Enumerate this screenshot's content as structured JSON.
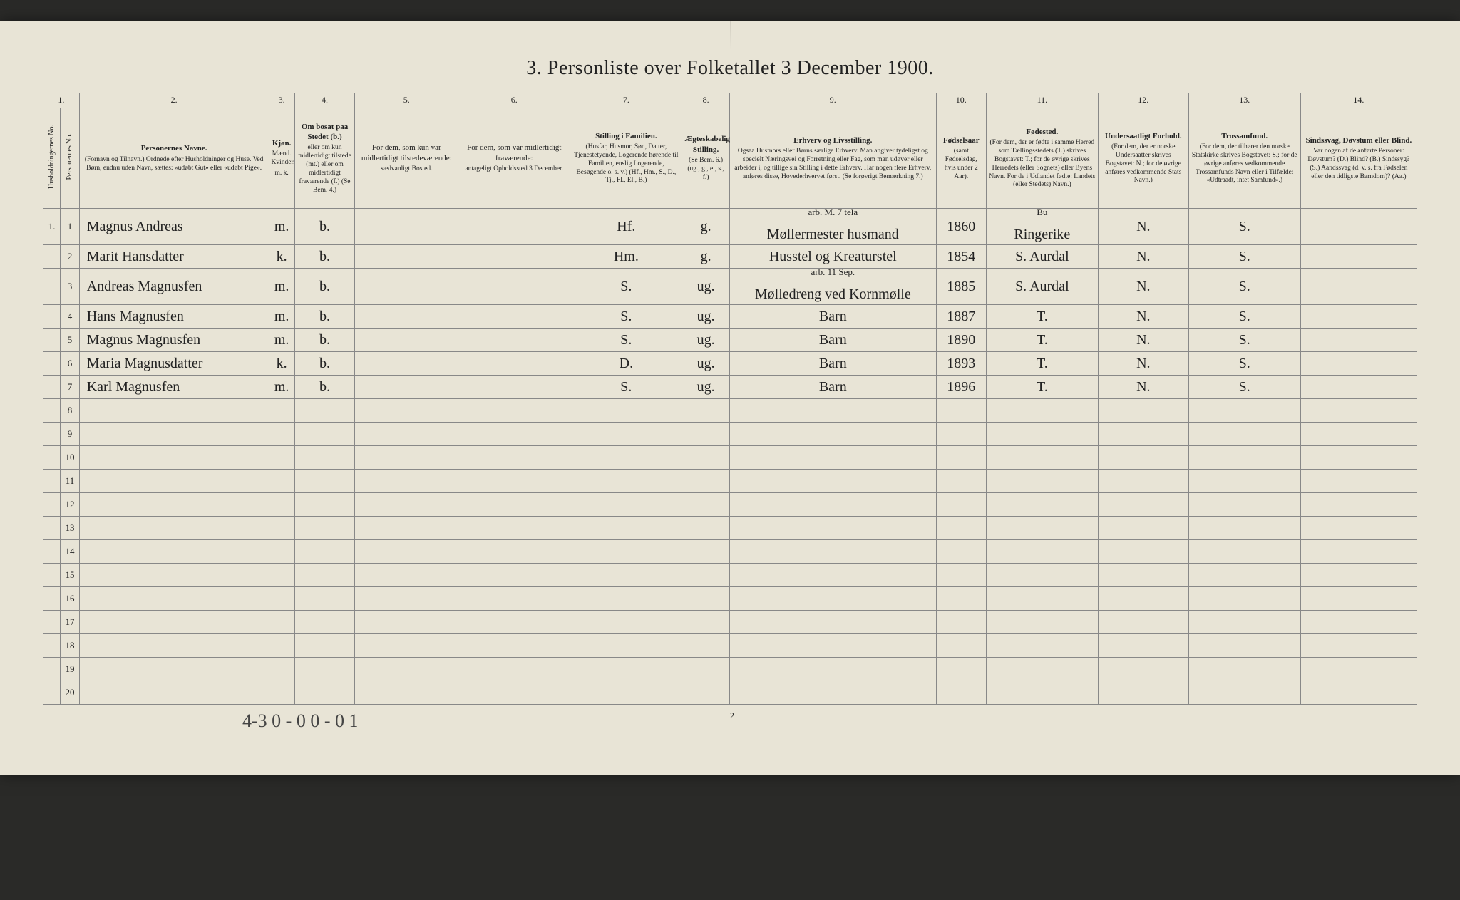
{
  "title": "3. Personliste over Folketallet 3 December 1900.",
  "footer": {
    "handwritten": "4-3  0 - 0    0 - 0    1",
    "page_number": "2"
  },
  "col_numbers": [
    "1.",
    "2.",
    "3.",
    "4.",
    "5.",
    "6.",
    "7.",
    "8.",
    "9.",
    "10.",
    "11.",
    "12.",
    "13.",
    "14."
  ],
  "headers": {
    "h1a": "Husholdningernes No.",
    "h1b": "Personernes No.",
    "c2_title": "Personernes Navne.",
    "c2_sub": "(Fornavn og Tilnavn.)\nOrdnede efter Husholdninger og Huse.\nVed Børn, endnu uden Navn, sættes: «udøbt Gut» eller «udøbt Pige».",
    "c3_title": "Kjøn.",
    "c3_sub": "Mænd. Kvinder.",
    "c3_foot": "m. k.",
    "c4_title": "Om bosat paa Stedet (b.)",
    "c4_sub": "eller om kun midlertidigt tilstede (mt.) eller om midlertidigt fraværende (f.)\n(Se Bem. 4.)",
    "c5_title": "For dem, som kun var midlertidigt tilstedeværende:",
    "c5_sub": "sædvanligt Bosted.",
    "c6_title": "For dem, som var midlertidigt fraværende:",
    "c6_sub": "antageligt Opholdssted 3 December.",
    "c7_title": "Stilling i Familien.",
    "c7_sub": "(Husfar, Husmor, Søn, Datter, Tjenestetyende, Logerende hørende til Familien, enslig Logerende, Besøgende o. s. v.)\n(Hf., Hm., S., D., Tj., Fl., El., B.)",
    "c8_title": "Ægteskabelig Stilling.",
    "c8_sub": "(Se Bem. 6.)\n(ug., g., e., s., f.)",
    "c9_title": "Erhverv og Livsstilling.",
    "c9_sub": "Ogsaa Husmors eller Børns særlige Erhverv. Man angiver tydeligst og specielt Næringsvei og Forretning eller Fag, som man udøver eller arbeider i, og tillige sin Stilling i dette Erhverv. Har nogen flere Erhverv, anføres disse, Hovederhvervet først.\n(Se forøvrigt Bemærkning 7.)",
    "c10_title": "Fødselsaar",
    "c10_sub": "(samt Fødselsdag, hvis under 2 Aar).",
    "c11_title": "Fødested.",
    "c11_sub": "(For dem, der er fødte i samme Herred som Tællingsstedets (T.) skrives Bogstavet: T.; for de øvrige skrives Herredets (eller Sognets) eller Byens Navn. For de i Udlandet fødte: Landets (eller Stedets) Navn.)",
    "c12_title": "Undersaatligt Forhold.",
    "c12_sub": "(For dem, der er norske Undersaatter skrives Bogstavet: N.; for de øvrige anføres vedkommende Stats Navn.)",
    "c13_title": "Trossamfund.",
    "c13_sub": "(For dem, der tilhører den norske Statskirke skrives Bogstavet: S.; for de øvrige anføres vedkommende Trossamfunds Navn eller i Tilfælde: «Udtraadt, intet Samfund».)",
    "c14_title": "Sindssvag, Døvstum eller Blind.",
    "c14_sub": "Var nogen af de anførte Personer:\nDøvstum? (D.)\nBlind? (B.)\nSindssyg? (S.)\nAandssvag (d. v. s. fra Fødselen eller den tidligste Barndom)? (Aa.)"
  },
  "rows": [
    {
      "h": "1.",
      "n": "1",
      "name": "Magnus Andreas",
      "sex": "m.",
      "stat": "b.",
      "fam": "Hf.",
      "civ": "g.",
      "occ": "Møllermester husmand",
      "occ_note": "arb. M. 7 tela",
      "year": "1860",
      "birthplace": "Ringerike",
      "birthplace_note": "Bu",
      "nat": "N.",
      "rel": "S."
    },
    {
      "h": "",
      "n": "2",
      "name": "Marit Hansdatter",
      "sex": "k.",
      "stat": "b.",
      "fam": "Hm.",
      "civ": "g.",
      "occ": "Husstel og Kreaturstel",
      "year": "1854",
      "birthplace": "S. Aurdal",
      "nat": "N.",
      "rel": "S."
    },
    {
      "h": "",
      "n": "3",
      "name": "Andreas Magnusfen",
      "sex": "m.",
      "stat": "b.",
      "fam": "S.",
      "civ": "ug.",
      "occ": "Mølledreng ved Kornmølle",
      "occ_note": "arb. 11 Sep.",
      "year": "1885",
      "birthplace": "S. Aurdal",
      "nat": "N.",
      "rel": "S."
    },
    {
      "h": "",
      "n": "4",
      "name": "Hans Magnusfen",
      "sex": "m.",
      "stat": "b.",
      "fam": "S.",
      "civ": "ug.",
      "occ": "Barn",
      "year": "1887",
      "birthplace": "T.",
      "nat": "N.",
      "rel": "S."
    },
    {
      "h": "",
      "n": "5",
      "name": "Magnus Magnusfen",
      "sex": "m.",
      "stat": "b.",
      "fam": "S.",
      "civ": "ug.",
      "occ": "Barn",
      "year": "1890",
      "birthplace": "T.",
      "nat": "N.",
      "rel": "S."
    },
    {
      "h": "",
      "n": "6",
      "name": "Maria Magnusdatter",
      "sex": "k.",
      "stat": "b.",
      "fam": "D.",
      "civ": "ug.",
      "occ": "Barn",
      "year": "1893",
      "birthplace": "T.",
      "nat": "N.",
      "rel": "S."
    },
    {
      "h": "",
      "n": "7",
      "name": "Karl Magnusfen",
      "sex": "m.",
      "stat": "b.",
      "fam": "S.",
      "civ": "ug.",
      "occ": "Barn",
      "year": "1896",
      "birthplace": "T.",
      "nat": "N.",
      "rel": "S."
    }
  ],
  "empty_rows": [
    "8",
    "9",
    "10",
    "11",
    "12",
    "13",
    "14",
    "15",
    "16",
    "17",
    "18",
    "19",
    "20"
  ]
}
